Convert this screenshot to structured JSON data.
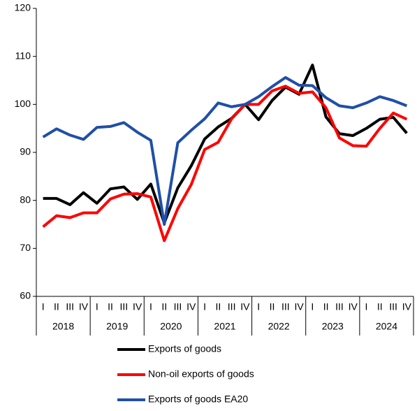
{
  "chart_data": {
    "type": "line",
    "categories": [
      "I",
      "II",
      "III",
      "IV",
      "I",
      "II",
      "III",
      "IV",
      "I",
      "II",
      "III",
      "IV",
      "I",
      "II",
      "III",
      "IV",
      "I",
      "II",
      "III",
      "IV",
      "I",
      "II",
      "III",
      "IV",
      "I",
      "II",
      "III",
      "IV"
    ],
    "groups": [
      "2018",
      "2019",
      "2020",
      "2021",
      "2022",
      "2023",
      "2024"
    ],
    "series": [
      {
        "name": "Exports of goods",
        "color": "#000000",
        "values": [
          80.4,
          80.4,
          79.1,
          81.6,
          79.4,
          82.4,
          82.8,
          80.2,
          83.4,
          75.3,
          82.6,
          87.2,
          92.8,
          95.3,
          97.1,
          100.0,
          96.8,
          100.8,
          103.6,
          102.1,
          108.2,
          97.4,
          93.9,
          93.5,
          95.0,
          96.9,
          97.3,
          94.0
        ]
      },
      {
        "name": "Non-oil exports of goods",
        "color": "#ff0000",
        "values": [
          74.5,
          76.8,
          76.4,
          77.4,
          77.4,
          80.3,
          81.3,
          81.4,
          80.7,
          71.6,
          78.3,
          83.3,
          90.6,
          92.1,
          97.0,
          100.0,
          100.0,
          102.8,
          103.8,
          102.3,
          102.6,
          99.3,
          93.0,
          91.4,
          91.3,
          95.0,
          98.2,
          96.9
        ]
      },
      {
        "name": "Exports of goods EA20",
        "color": "#1f4fa8",
        "values": [
          93.2,
          94.9,
          93.6,
          92.7,
          95.2,
          95.4,
          96.2,
          94.2,
          92.5,
          75.0,
          92.0,
          94.6,
          97.0,
          100.3,
          99.5,
          100.0,
          101.6,
          103.7,
          105.6,
          104.0,
          103.9,
          101.4,
          99.7,
          99.3,
          100.3,
          101.6,
          100.8,
          99.7
        ]
      }
    ],
    "ylim": [
      60,
      120
    ],
    "yticks": [
      60,
      70,
      80,
      90,
      100,
      110,
      120
    ],
    "legend": "bottom"
  }
}
